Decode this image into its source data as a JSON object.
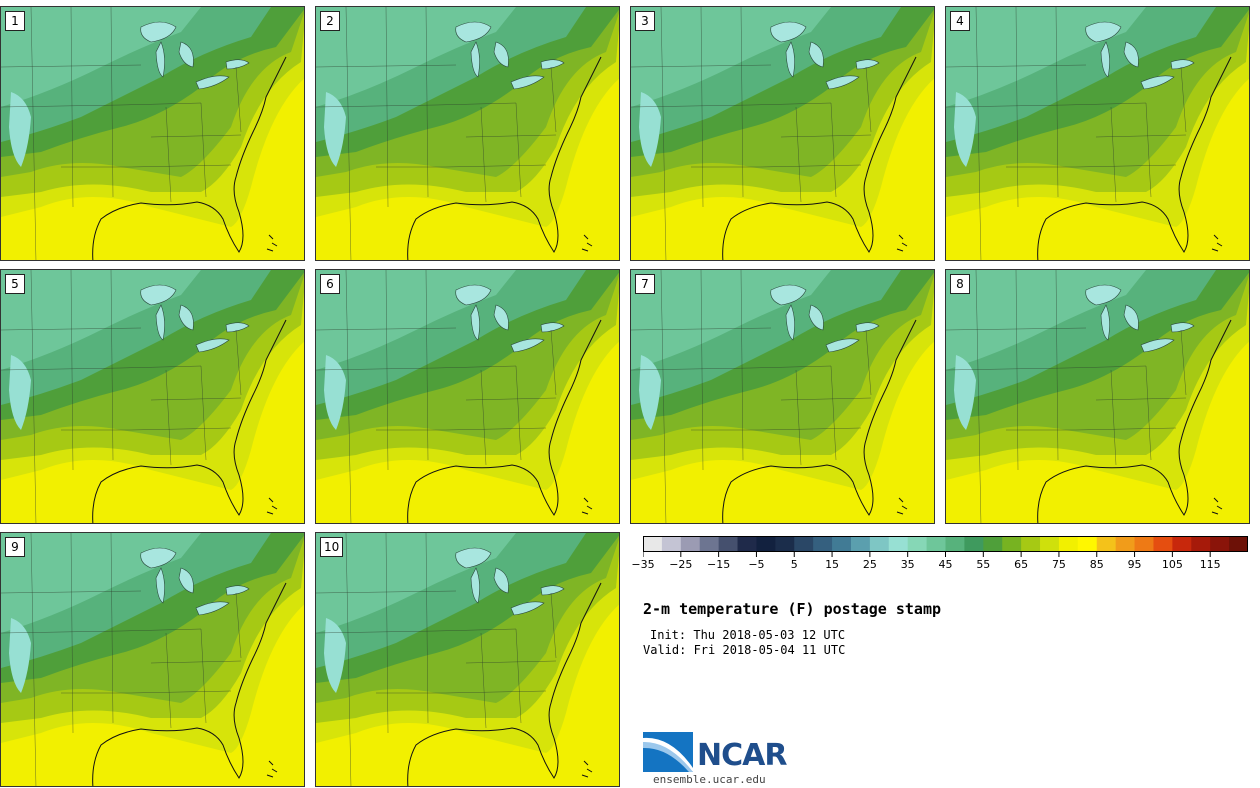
{
  "title": "2-m temperature (F) postage stamp",
  "init": "Init: Thu 2018-05-03 12 UTC",
  "valid": "Valid: Fri 2018-05-04 11 UTC",
  "logo_text": "NCAR",
  "site": "ensemble.ucar.edu",
  "members": [
    "1",
    "2",
    "3",
    "4",
    "5",
    "6",
    "7",
    "8",
    "9",
    "10"
  ],
  "colorbar": {
    "colors": [
      "#e8e8e8",
      "#c4c4d4",
      "#9b9bb3",
      "#6d7591",
      "#45506e",
      "#1f2a4a",
      "#12213f",
      "#1b2d4b",
      "#2a4766",
      "#35607f",
      "#417b95",
      "#5b9fae",
      "#7ec6c4",
      "#97e0d3",
      "#86d7b6",
      "#6ec69a",
      "#57b27c",
      "#3f9a5e",
      "#4f9f3a",
      "#77b321",
      "#a6c914",
      "#cfe00c",
      "#f2f000",
      "#fff700",
      "#f4c21a",
      "#f19c1a",
      "#ee7a15",
      "#e54e10",
      "#c8280c",
      "#a61a0a",
      "#8a1409",
      "#6d1107"
    ],
    "tick_labels": [
      "−35",
      "−25",
      "−15",
      "−5",
      "5",
      "15",
      "25",
      "35",
      "45",
      "55",
      "65",
      "75",
      "85",
      "95",
      "105",
      "115"
    ]
  }
}
